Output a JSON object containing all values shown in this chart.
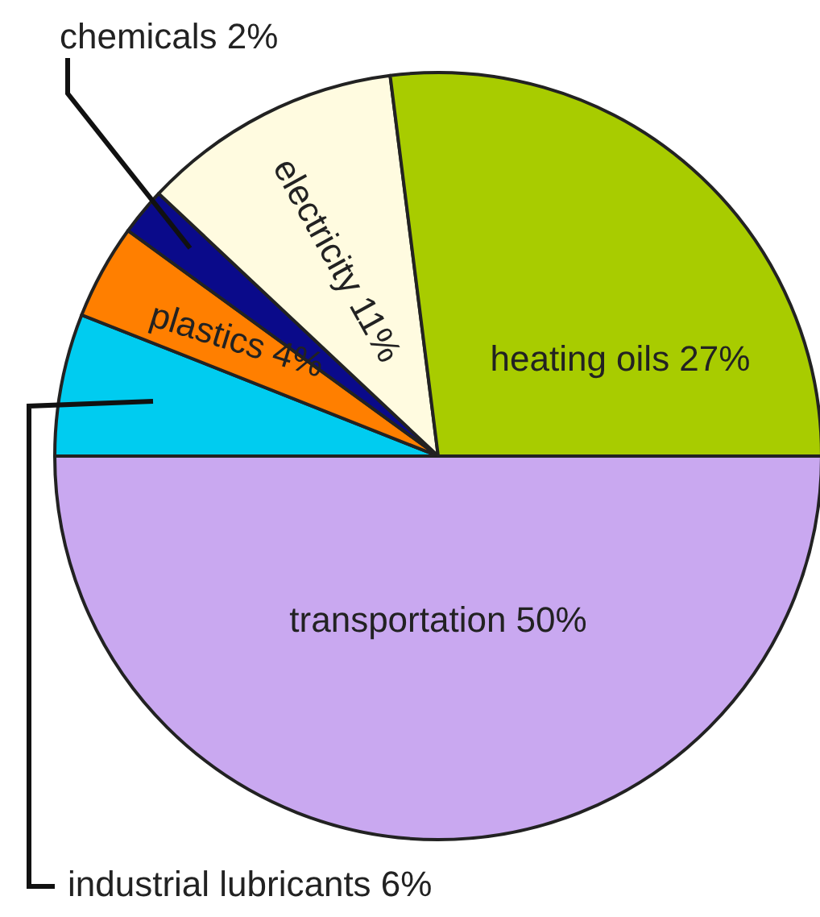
{
  "chart_data": {
    "type": "pie",
    "categories": [
      "transportation",
      "industrial lubricants",
      "plastics",
      "chemicals",
      "electricity",
      "heating oils"
    ],
    "values": [
      50,
      6,
      4,
      2,
      11,
      27
    ],
    "value_labels": [
      "50%",
      "6%",
      "4%",
      "2%",
      "11%",
      "27%"
    ],
    "colors": [
      "#c9a8f0",
      "#00ccf0",
      "#ff7f00",
      "#0a0a8a",
      "#fffbe0",
      "#a8cc00"
    ]
  }
}
